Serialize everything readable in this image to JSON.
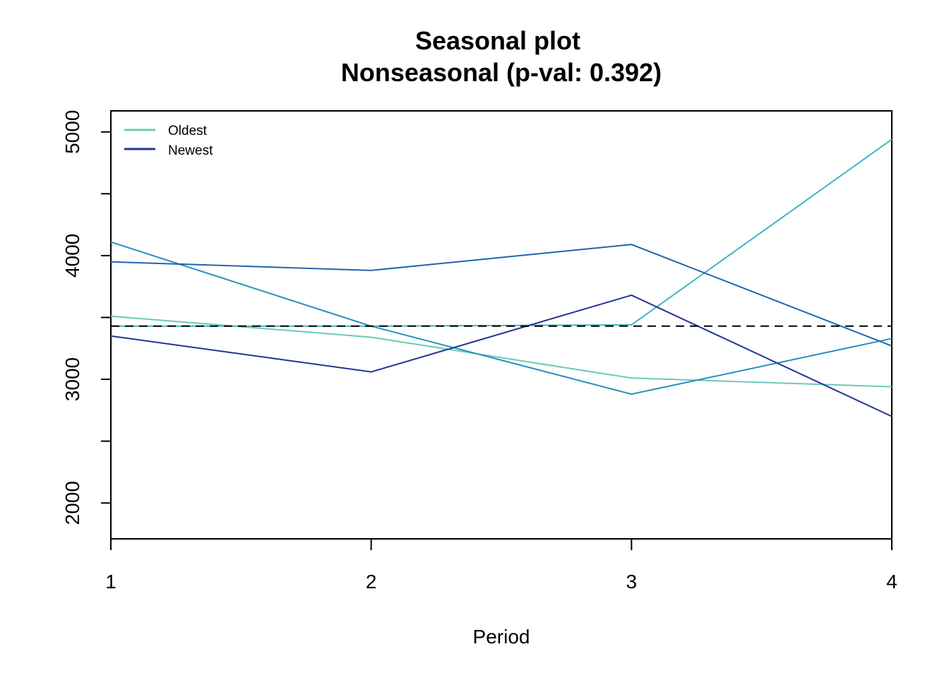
{
  "chart_data": {
    "type": "line",
    "title": "Seasonal plot",
    "subtitle": "Nonseasonal (p-val: 0.392)",
    "xlabel": "Period",
    "ylabel": "",
    "x": [
      1,
      2,
      3,
      4
    ],
    "x_tick_labels": [
      "1",
      "2",
      "3",
      "4"
    ],
    "xlim": [
      1,
      4
    ],
    "ylim": [
      1710,
      5170
    ],
    "y_ticks": [
      2000,
      2500,
      3000,
      3500,
      4000,
      4500,
      5000
    ],
    "y_tick_labels": [
      "2000",
      "",
      "3000",
      "",
      "4000",
      "",
      "5000"
    ],
    "reference_line": {
      "value": 3430,
      "style": "dashed",
      "color": "#000000"
    },
    "series": [
      {
        "values": [
          3510,
          3340,
          3010,
          2940
        ],
        "color": "#6CC9B2"
      },
      {
        "values": [
          3430,
          3430,
          3440,
          4940
        ],
        "color": "#41B6C4"
      },
      {
        "values": [
          4110,
          3430,
          2880,
          3330
        ],
        "color": "#2590BD"
      },
      {
        "values": [
          3950,
          3880,
          4090,
          3270
        ],
        "color": "#2166AC"
      },
      {
        "values": [
          3350,
          3060,
          3680,
          2700
        ],
        "color": "#253494"
      }
    ],
    "legend": {
      "position": "top-left",
      "entries": [
        {
          "label": "Oldest",
          "color": "#6CC9B2"
        },
        {
          "label": "Newest",
          "color": "#253494"
        }
      ]
    },
    "grid": false
  }
}
